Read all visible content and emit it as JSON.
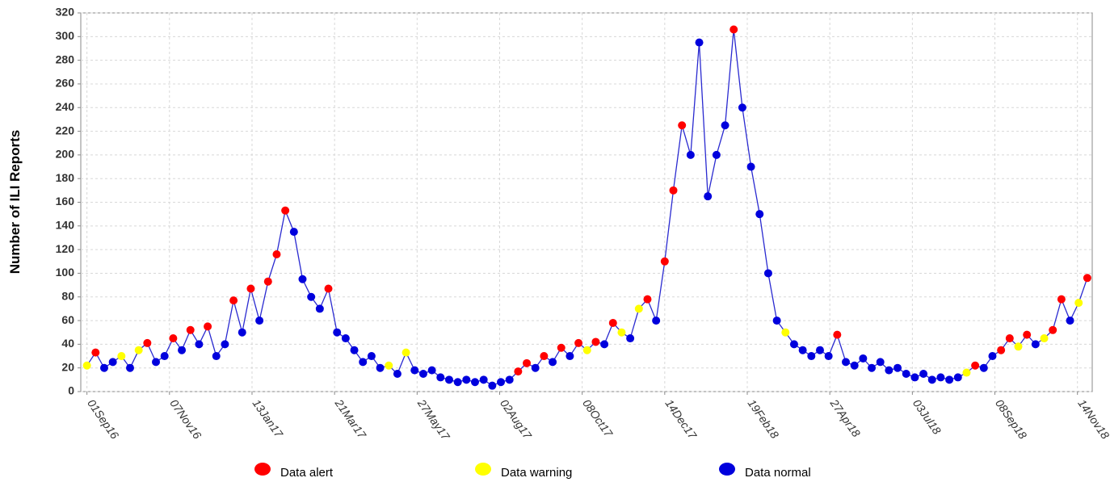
{
  "chart_data": {
    "type": "line",
    "y_label": "Number of ILI Reports",
    "line_color": "#2a2ad0",
    "grid": true,
    "legend": [
      {
        "name": "Data alert",
        "color": "#ff0000"
      },
      {
        "name": "Data warning",
        "color": "#ffff00"
      },
      {
        "name": "Data normal",
        "color": "#0000dd"
      }
    ],
    "xlim": [
      "2016-08-27",
      "2018-11-26"
    ],
    "xticks": [
      {
        "value": "2016-09-01",
        "label": "01Sep16"
      },
      {
        "value": "2016-11-07",
        "label": "07Nov16"
      },
      {
        "value": "2017-01-13",
        "label": "13Jan17"
      },
      {
        "value": "2017-03-21",
        "label": "21Mar17"
      },
      {
        "value": "2017-05-27",
        "label": "27May17"
      },
      {
        "value": "2017-08-02",
        "label": "02Aug17"
      },
      {
        "value": "2017-10-08",
        "label": "08Oct17"
      },
      {
        "value": "2017-12-14",
        "label": "14Dec17"
      },
      {
        "value": "2018-02-19",
        "label": "19Feb18"
      },
      {
        "value": "2018-04-27",
        "label": "27Apr18"
      },
      {
        "value": "2018-07-03",
        "label": "03Jul18"
      },
      {
        "value": "2018-09-08",
        "label": "08Sep18"
      },
      {
        "value": "2018-11-14",
        "label": "14Nov18"
      }
    ],
    "ylim": [
      0,
      320
    ],
    "yticks": [
      0,
      20,
      40,
      60,
      80,
      100,
      120,
      140,
      160,
      180,
      200,
      220,
      240,
      260,
      280,
      300,
      320
    ],
    "x": [
      "2016-09-01",
      "2016-09-08",
      "2016-09-15",
      "2016-09-22",
      "2016-09-29",
      "2016-10-06",
      "2016-10-13",
      "2016-10-20",
      "2016-10-27",
      "2016-11-03",
      "2016-11-10",
      "2016-11-17",
      "2016-11-24",
      "2016-12-01",
      "2016-12-08",
      "2016-12-15",
      "2016-12-22",
      "2016-12-29",
      "2017-01-05",
      "2017-01-12",
      "2017-01-19",
      "2017-01-26",
      "2017-02-02",
      "2017-02-09",
      "2017-02-16",
      "2017-02-23",
      "2017-03-02",
      "2017-03-09",
      "2017-03-16",
      "2017-03-23",
      "2017-03-30",
      "2017-04-06",
      "2017-04-13",
      "2017-04-20",
      "2017-04-27",
      "2017-05-04",
      "2017-05-11",
      "2017-05-18",
      "2017-05-25",
      "2017-06-01",
      "2017-06-08",
      "2017-06-15",
      "2017-06-22",
      "2017-06-29",
      "2017-07-06",
      "2017-07-13",
      "2017-07-20",
      "2017-07-27",
      "2017-08-03",
      "2017-08-10",
      "2017-08-17",
      "2017-08-24",
      "2017-08-31",
      "2017-09-07",
      "2017-09-14",
      "2017-09-21",
      "2017-09-28",
      "2017-10-05",
      "2017-10-12",
      "2017-10-19",
      "2017-10-26",
      "2017-11-02",
      "2017-11-09",
      "2017-11-16",
      "2017-11-23",
      "2017-11-30",
      "2017-12-07",
      "2017-12-14",
      "2017-12-21",
      "2017-12-28",
      "2018-01-04",
      "2018-01-11",
      "2018-01-18",
      "2018-01-25",
      "2018-02-01",
      "2018-02-08",
      "2018-02-15",
      "2018-02-22",
      "2018-03-01",
      "2018-03-08",
      "2018-03-15",
      "2018-03-22",
      "2018-03-29",
      "2018-04-05",
      "2018-04-12",
      "2018-04-19",
      "2018-04-26",
      "2018-05-03",
      "2018-05-10",
      "2018-05-17",
      "2018-05-24",
      "2018-05-31",
      "2018-06-07",
      "2018-06-14",
      "2018-06-21",
      "2018-06-28",
      "2018-07-05",
      "2018-07-12",
      "2018-07-19",
      "2018-07-26",
      "2018-08-02",
      "2018-08-09",
      "2018-08-16",
      "2018-08-23",
      "2018-08-30",
      "2018-09-06",
      "2018-09-13",
      "2018-09-20",
      "2018-09-27",
      "2018-10-04",
      "2018-10-11",
      "2018-10-18",
      "2018-10-25",
      "2018-11-01",
      "2018-11-08",
      "2018-11-15",
      "2018-11-22"
    ],
    "values": [
      22,
      33,
      20,
      25,
      30,
      20,
      35,
      41,
      25,
      30,
      45,
      35,
      52,
      40,
      55,
      30,
      40,
      77,
      50,
      87,
      60,
      93,
      116,
      153,
      135,
      95,
      80,
      70,
      87,
      50,
      45,
      35,
      25,
      30,
      20,
      22,
      15,
      33,
      18,
      15,
      18,
      12,
      10,
      8,
      10,
      8,
      10,
      5,
      8,
      10,
      17,
      24,
      20,
      30,
      25,
      37,
      30,
      41,
      35,
      42,
      40,
      58,
      50,
      45,
      70,
      78,
      60,
      110,
      170,
      225,
      200,
      295,
      165,
      200,
      225,
      306,
      240,
      190,
      150,
      100,
      60,
      50,
      40,
      35,
      30,
      35,
      30,
      48,
      25,
      22,
      28,
      20,
      25,
      18,
      20,
      15,
      12,
      15,
      10,
      12,
      10,
      12,
      16,
      22,
      20,
      30,
      35,
      45,
      38,
      48,
      40,
      45,
      52,
      78,
      60,
      75,
      96
    ],
    "status": [
      1,
      0,
      2,
      2,
      1,
      2,
      1,
      0,
      2,
      2,
      0,
      2,
      0,
      2,
      0,
      2,
      2,
      0,
      2,
      0,
      2,
      0,
      0,
      0,
      2,
      2,
      2,
      2,
      0,
      2,
      2,
      2,
      2,
      2,
      2,
      1,
      2,
      1,
      2,
      2,
      2,
      2,
      2,
      2,
      2,
      2,
      2,
      2,
      2,
      2,
      0,
      0,
      2,
      0,
      2,
      0,
      2,
      0,
      1,
      0,
      2,
      0,
      1,
      2,
      1,
      0,
      2,
      0,
      0,
      0,
      2,
      2,
      2,
      2,
      2,
      0,
      2,
      2,
      2,
      2,
      2,
      1,
      2,
      2,
      2,
      2,
      2,
      0,
      2,
      2,
      2,
      2,
      2,
      2,
      2,
      2,
      2,
      2,
      2,
      2,
      2,
      2,
      1,
      0,
      2,
      2,
      0,
      0,
      1,
      0,
      2,
      1,
      0,
      0,
      2,
      1,
      0
    ]
  }
}
